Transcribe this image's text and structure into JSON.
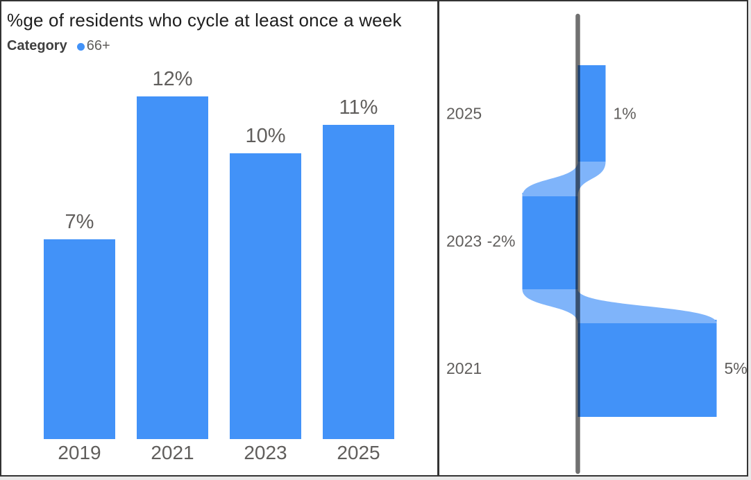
{
  "colors": {
    "accent_blue": "#4292F8",
    "light_blue": "#7FB4FA",
    "axis_gray": "#717171",
    "label_gray": "#605E5C",
    "title_color": "#1E1E1E",
    "border_gray": "#333333"
  },
  "chart_data": [
    {
      "type": "bar",
      "title": "%ge of residents who cycle at least once a week",
      "legend": {
        "field_label": "Category",
        "series_label": "66+",
        "position": "top-left"
      },
      "categories": [
        "2019",
        "2021",
        "2023",
        "2025"
      ],
      "values": [
        7,
        12,
        10,
        11
      ],
      "data_labels": [
        "7%",
        "12%",
        "10%",
        "11%"
      ],
      "xlabel": "",
      "ylabel": "",
      "ylim": [
        0,
        13
      ],
      "grid": false
    },
    {
      "type": "area",
      "subtype": "change-flow-ribbon",
      "layout_hint": "vertical zero baseline, positive changes extend right, negative extend left, light ribbons connect periods",
      "categories": [
        "2025",
        "2023",
        "2021"
      ],
      "values": [
        1,
        -2,
        5
      ],
      "data_labels": [
        "1%",
        "-2%",
        "5%"
      ],
      "baseline": 0,
      "grid": false
    }
  ]
}
